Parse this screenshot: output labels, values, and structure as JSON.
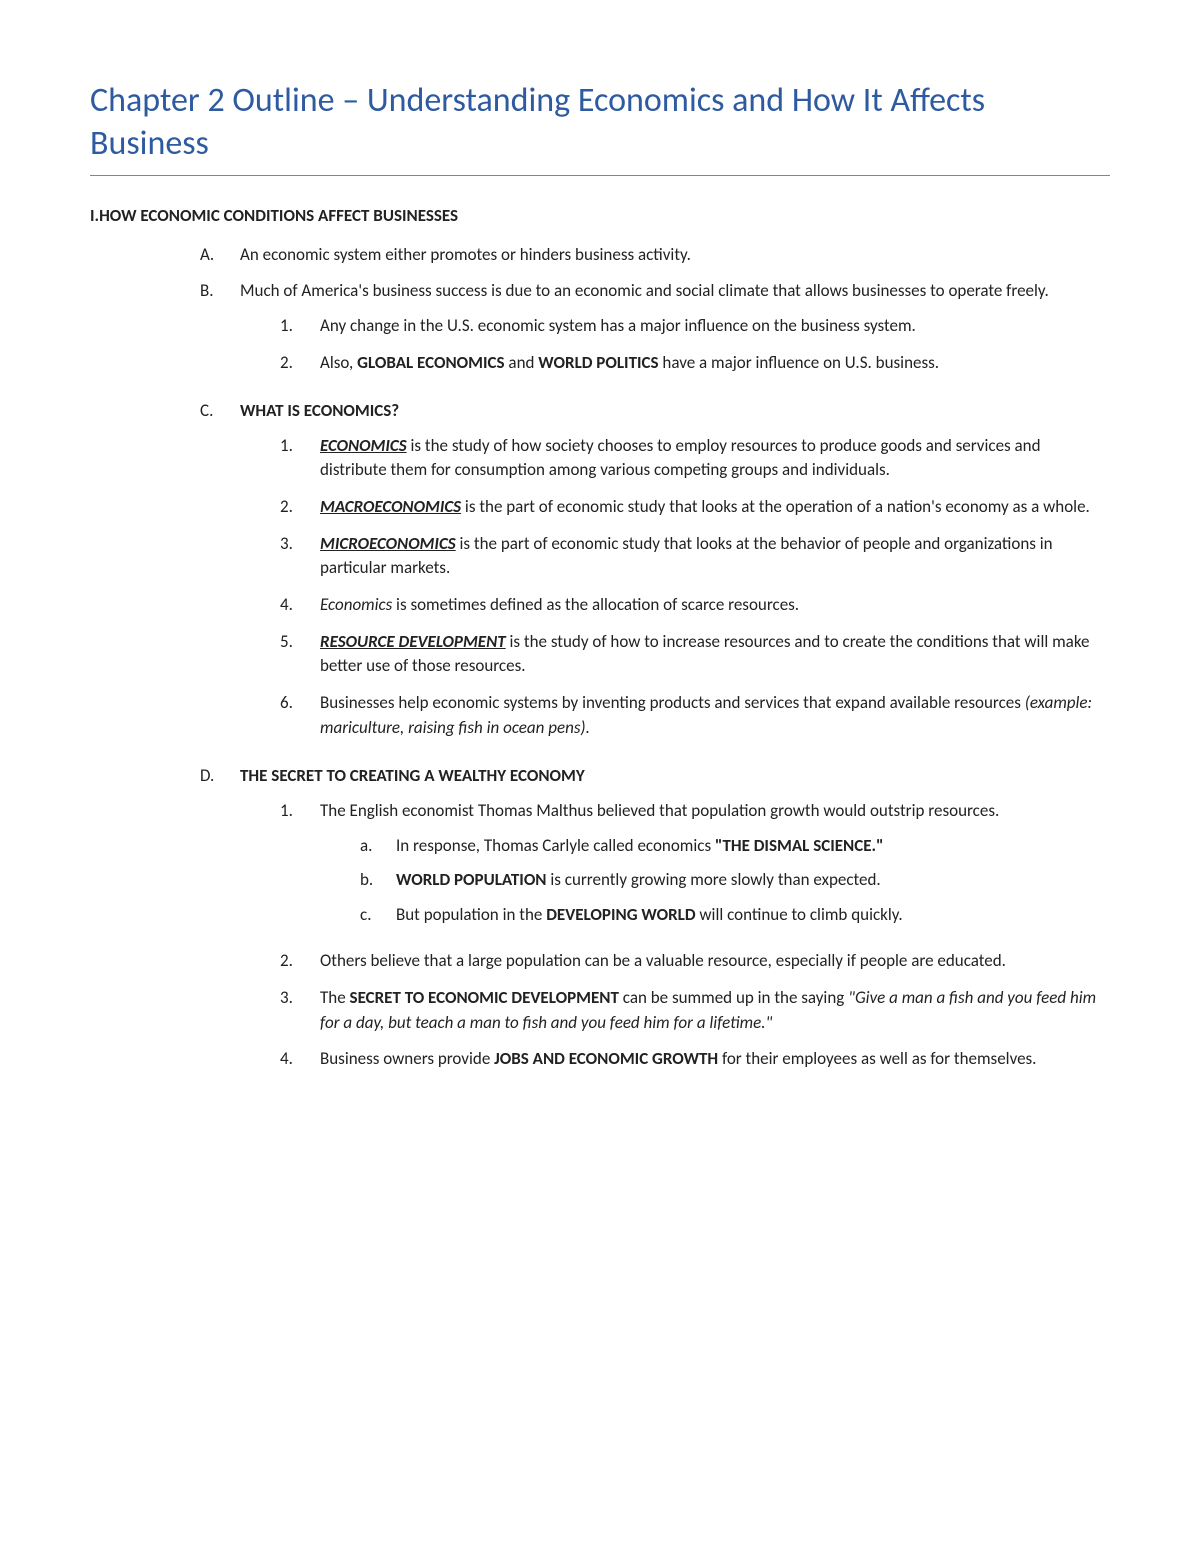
{
  "title": "Chapter 2 Outline – Understanding Economics and How It Affects Business",
  "section": {
    "marker": "I.",
    "heading": "HOW ECONOMIC CONDITIONS AFFECT BUSINESSES"
  },
  "A": {
    "marker": "A.",
    "text": "An economic system either promotes or hinders business activity."
  },
  "B": {
    "marker": "B.",
    "text": "Much of America's business success is due to an economic and social climate that allows businesses to operate freely.",
    "i1": {
      "marker": "1.",
      "text": "Any change in the U.S. economic system has a major influence on the business system."
    },
    "i2": {
      "marker": "2.",
      "pre": "Also, ",
      "b1": "GLOBAL ECONOMICS",
      "mid": " and ",
      "b2": "WORLD POLITICS",
      "post": " have a major influence on U.S. business."
    }
  },
  "C": {
    "marker": "C.",
    "heading": "WHAT IS ECONOMICS?",
    "i1": {
      "marker": "1.",
      "term": "ECONOMICS",
      "text": " is the study of how society chooses to employ resources to produce goods and services and distribute them for consumption among various competing groups and individuals."
    },
    "i2": {
      "marker": "2.",
      "term": "MACROECONOMICS",
      "text": " is the part of economic study that looks at the operation of a nation's economy as a whole."
    },
    "i3": {
      "marker": "3.",
      "term": "MICROECONOMICS",
      "text": " is the part of economic study that looks at the behavior of people and organizations in particular markets."
    },
    "i4": {
      "marker": "4.",
      "term": "Economics",
      "text": " is sometimes defined as the allocation of scarce resources."
    },
    "i5": {
      "marker": "5.",
      "term": "RESOURCE DEVELOPMENT",
      "text": " is the study of how to increase resources and to create the conditions that will make better use of those resources."
    },
    "i6": {
      "marker": "6.",
      "text": "Businesses help economic systems by inventing products and services that expand available resources ",
      "italic": "(example: mariculture, raising fish in ocean pens)."
    }
  },
  "D": {
    "marker": "D.",
    "heading": "THE SECRET TO CREATING A WEALTHY ECONOMY",
    "i1": {
      "marker": "1.",
      "text": "The English economist Thomas Malthus believed that population growth would outstrip resources.",
      "a": {
        "marker": "a.",
        "pre": "In response, Thomas Carlyle called economics ",
        "b": "\"THE DISMAL SCIENCE.\""
      },
      "b": {
        "marker": "b.",
        "b": "WORLD POPULATION",
        "post": " is currently growing more slowly than expected."
      },
      "c": {
        "marker": "c.",
        "pre": "But population in the ",
        "b": "DEVELOPING WORLD",
        "post": " will continue to climb quickly."
      }
    },
    "i2": {
      "marker": "2.",
      "text": "Others believe that a large population can be a valuable resource, especially if people are educated."
    },
    "i3": {
      "marker": "3.",
      "pre": "The ",
      "b": "SECRET TO ECONOMIC DEVELOPMENT",
      "mid": " can be summed up in the saying ",
      "italic": "\"Give a man a fish and you feed him for a day, but teach a man to fish and you feed him for a lifetime.\""
    },
    "i4": {
      "marker": "4.",
      "pre": "Business owners provide ",
      "b": "JOBS AND ECONOMIC GROWTH",
      "post": " for their employees as well as for themselves."
    }
  }
}
